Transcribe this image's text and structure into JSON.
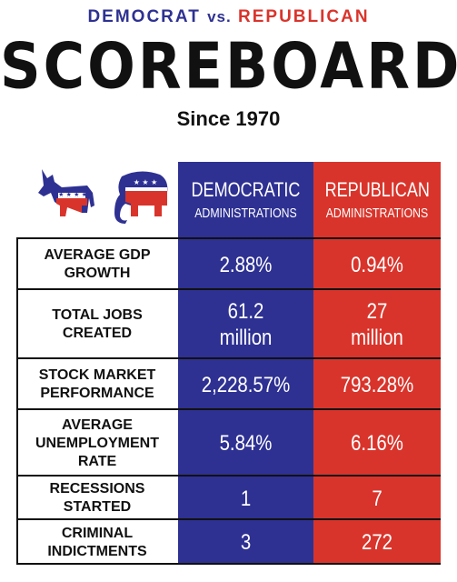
{
  "header": {
    "democrat": "DEMOCRAT",
    "vs": "vs.",
    "republican": "REPUBLICAN",
    "title": "SCOREBOARD",
    "since": "Since 1970"
  },
  "columns": {
    "democratic": {
      "line1": "DEMOCRATIC",
      "line2": "ADMINISTRATIONS"
    },
    "republican": {
      "line1": "REPUBLICAN",
      "line2": "ADMINISTRATIONS"
    }
  },
  "icons": {
    "democrat": "donkey-icon",
    "republican": "elephant-icon"
  },
  "colors": {
    "democratic_blue": "#2e3192",
    "republican_red": "#d9342b"
  },
  "rows": [
    {
      "label": "AVERAGE GDP\nGROWTH",
      "dem": "2.88%",
      "rep": "0.94%"
    },
    {
      "label": "TOTAL JOBS\nCREATED",
      "dem": "61.2\nmillion",
      "rep": "27\nmillion"
    },
    {
      "label": "STOCK MARKET\nPERFORMANCE",
      "dem": "2,228.57%",
      "rep": "793.28%"
    },
    {
      "label": "AVERAGE\nUNEMPLOYMENT\nRATE",
      "dem": "5.84%",
      "rep": "6.16%"
    },
    {
      "label": "RECESSIONS\nSTARTED",
      "dem": "1",
      "rep": "7"
    },
    {
      "label": "CRIMINAL\nINDICTMENTS",
      "dem": "3",
      "rep": "272"
    }
  ]
}
